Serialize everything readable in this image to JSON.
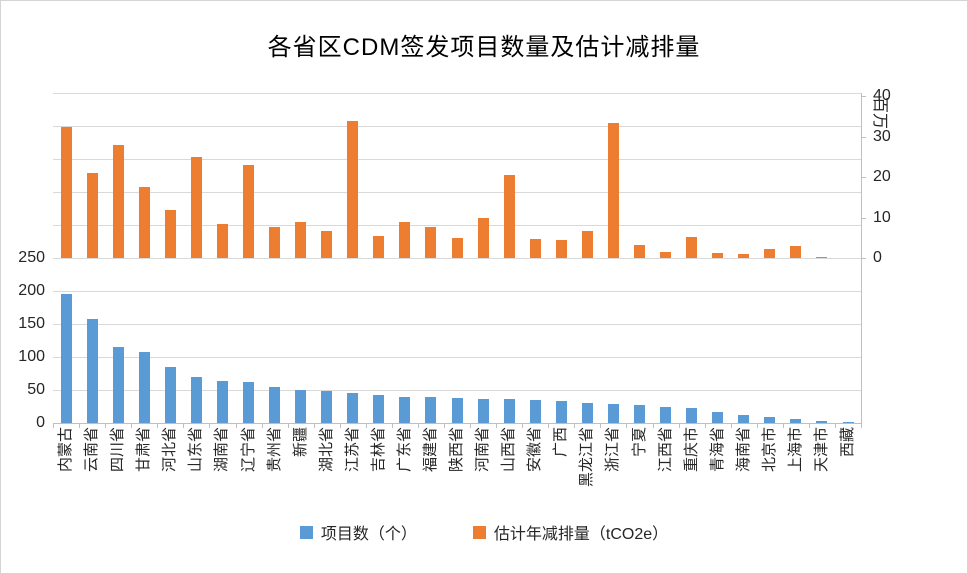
{
  "chart_data": {
    "type": "bar",
    "dual_axis": true,
    "title": "各省区CDM签发项目数量及估计减排量",
    "grid": true,
    "legend_position": "bottom",
    "categories": [
      "内蒙古",
      "云南省",
      "四川省",
      "甘肃省",
      "河北省",
      "山东省",
      "湖南省",
      "辽宁省",
      "贵州省",
      "新疆",
      "湖北省",
      "江苏省",
      "吉林省",
      "广东省",
      "福建省",
      "陕西省",
      "河南省",
      "山西省",
      "安徽省",
      "广西",
      "黑龙江省",
      "浙江省",
      "宁夏",
      "江西省",
      "重庆市",
      "青海省",
      "海南省",
      "北京市",
      "上海市",
      "天津市",
      "西藏"
    ],
    "series": [
      {
        "name": "项目数（个）",
        "axis": "left",
        "color": "#5B9BD5",
        "values": [
          195,
          157,
          115,
          107,
          85,
          70,
          64,
          62,
          55,
          50,
          49,
          46,
          43,
          40,
          39,
          38,
          37,
          36,
          35,
          33,
          31,
          29,
          28,
          25,
          23,
          17,
          12,
          9,
          6,
          3,
          1
        ]
      },
      {
        "name": "估计年减排量（tCO2e）",
        "axis": "right",
        "color": "#ED7D31",
        "values": [
          32.5,
          21,
          28,
          17.5,
          12,
          25,
          8.5,
          23,
          7.6,
          9,
          6.6,
          34,
          5.5,
          8.8,
          7.8,
          5,
          10,
          20.5,
          4.7,
          4.5,
          6.8,
          33.5,
          3.3,
          1.4,
          5.2,
          1.2,
          1,
          2.3,
          3.1,
          0.2,
          0
        ]
      }
    ],
    "left_axis": {
      "tick_values": [
        0,
        50,
        100,
        150,
        200,
        250
      ],
      "tick_labels": [
        "0",
        "50",
        "100",
        "150",
        "200",
        "250"
      ]
    },
    "right_axis": {
      "tick_values": [
        0,
        10,
        20,
        30,
        40
      ],
      "tick_labels": [
        "0",
        "10",
        "20",
        "30",
        "40"
      ],
      "unit_label": "百万"
    }
  },
  "colors": {
    "series_blue": "#5B9BD5",
    "series_orange": "#ED7D31",
    "gridline": "#D9D9D9",
    "axis_line": "#BFBFBF",
    "text": "#262626"
  }
}
